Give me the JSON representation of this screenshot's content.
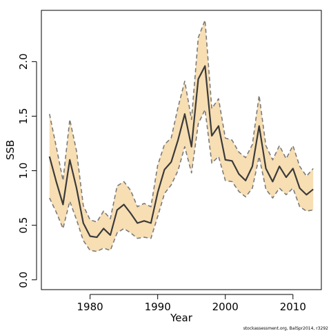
{
  "chart_data": {
    "type": "area",
    "title": "",
    "xlabel": "Year",
    "ylabel": "SSB",
    "xlim": [
      1972.8,
      2014.2
    ],
    "ylim": [
      -0.09,
      2.47
    ],
    "xticks": [
      1980,
      1990,
      2000,
      2010
    ],
    "xtick_labels": [
      "1980",
      "1990",
      "2000",
      "2010"
    ],
    "yticks": [
      0.0,
      0.5,
      1.0,
      1.5,
      2.0
    ],
    "ytick_labels": [
      "0.0",
      "0.5",
      "1.0",
      "1.5",
      "2.0"
    ],
    "grid": false,
    "legend": "none",
    "colors": {
      "band_fill": "#f7deb3",
      "bound_line": "#7a7a7a",
      "estimate_line": "#3a3a3a",
      "axis": "#000000"
    },
    "x": [
      1974,
      1975,
      1976,
      1977,
      1978,
      1979,
      1980,
      1981,
      1982,
      1983,
      1984,
      1985,
      1986,
      1987,
      1988,
      1989,
      1990,
      1991,
      1992,
      1993,
      1994,
      1995,
      1996,
      1997,
      1998,
      1999,
      2000,
      2001,
      2002,
      2003,
      2004,
      2005,
      2006,
      2007,
      2008,
      2009,
      2010,
      2011,
      2012,
      2013
    ],
    "series": [
      {
        "role": "estimate",
        "values": [
          1.13,
          0.9,
          0.69,
          1.1,
          0.84,
          0.52,
          0.4,
          0.39,
          0.47,
          0.41,
          0.64,
          0.69,
          0.61,
          0.52,
          0.54,
          0.52,
          0.8,
          1.01,
          1.08,
          1.28,
          1.52,
          1.22,
          1.84,
          1.96,
          1.32,
          1.41,
          1.1,
          1.09,
          0.97,
          0.91,
          1.04,
          1.41,
          1.02,
          0.9,
          1.04,
          0.94,
          1.02,
          0.84,
          0.78,
          0.83
        ]
      },
      {
        "role": "upper",
        "values": [
          1.52,
          1.22,
          0.91,
          1.47,
          1.18,
          0.68,
          0.55,
          0.53,
          0.63,
          0.56,
          0.86,
          0.9,
          0.82,
          0.67,
          0.7,
          0.67,
          1.05,
          1.24,
          1.3,
          1.58,
          1.82,
          1.47,
          2.22,
          2.38,
          1.57,
          1.66,
          1.3,
          1.28,
          1.17,
          1.12,
          1.24,
          1.69,
          1.23,
          1.1,
          1.23,
          1.11,
          1.23,
          1.04,
          0.95,
          1.02
        ]
      },
      {
        "role": "lower",
        "values": [
          0.75,
          0.62,
          0.47,
          0.72,
          0.55,
          0.36,
          0.27,
          0.26,
          0.29,
          0.27,
          0.43,
          0.47,
          0.43,
          0.38,
          0.39,
          0.38,
          0.58,
          0.79,
          0.87,
          1.0,
          1.22,
          0.98,
          1.43,
          1.56,
          1.07,
          1.13,
          0.91,
          0.9,
          0.81,
          0.76,
          0.84,
          1.13,
          0.83,
          0.75,
          0.84,
          0.78,
          0.84,
          0.67,
          0.63,
          0.64
        ]
      }
    ],
    "footnote": "stockassessment.org, BalSpr2014, r3292"
  }
}
